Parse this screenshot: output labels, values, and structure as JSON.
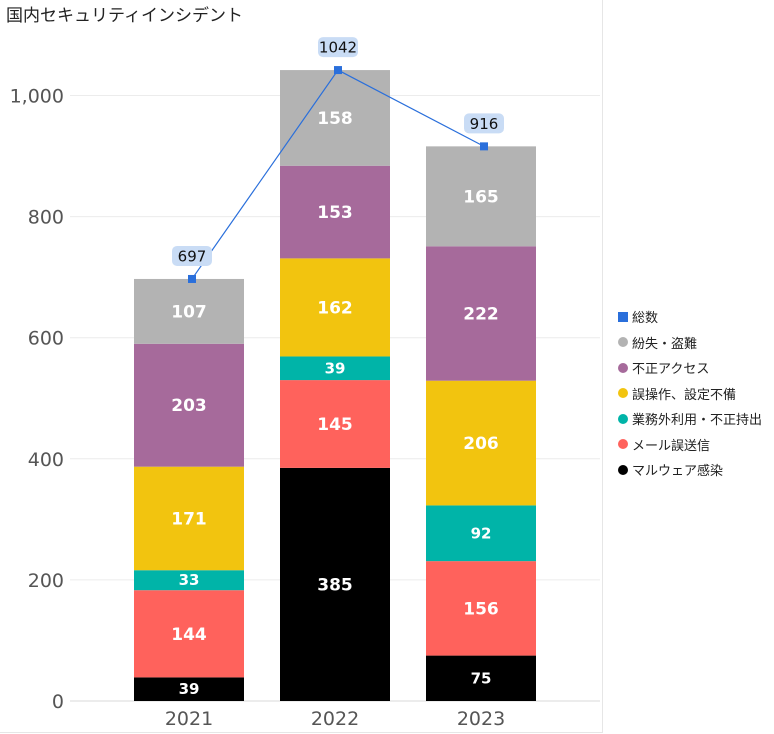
{
  "chart_data": {
    "type": "bar",
    "stacked": true,
    "title": "国内セキュリティインシデント",
    "categories": [
      "2021",
      "2022",
      "2023"
    ],
    "y_ticks": [
      "0",
      "200",
      "400",
      "600",
      "800",
      "1,000"
    ],
    "ylim": [
      0,
      1100
    ],
    "grid": true,
    "legend_position": "right",
    "series": [
      {
        "name": "マルウェア感染",
        "color": "#000000",
        "label_color": "#ffffff",
        "values": [
          39,
          385,
          75
        ]
      },
      {
        "name": "メール誤送信",
        "color": "#ff625c",
        "label_color": "#ffffff",
        "values": [
          144,
          145,
          156
        ]
      },
      {
        "name": "業務外利用・不正持出",
        "color": "#00b4a8",
        "label_color": "#ffffff",
        "values": [
          33,
          39,
          92
        ]
      },
      {
        "name": "誤操作、設定不備",
        "color": "#f2c40f",
        "label_color": "#ffffff",
        "values": [
          171,
          162,
          206
        ]
      },
      {
        "name": "不正アクセス",
        "color": "#a66a9b",
        "label_color": "#ffffff",
        "values": [
          203,
          153,
          222
        ]
      },
      {
        "name": "紛失・盗難",
        "color": "#b3b3b3",
        "label_color": "#ffffff",
        "values": [
          107,
          158,
          165
        ]
      }
    ],
    "total": {
      "name": "総数",
      "color": "#2a6fdb",
      "label_bg": "#c9dcf5",
      "values": [
        697,
        1042,
        916
      ]
    }
  }
}
